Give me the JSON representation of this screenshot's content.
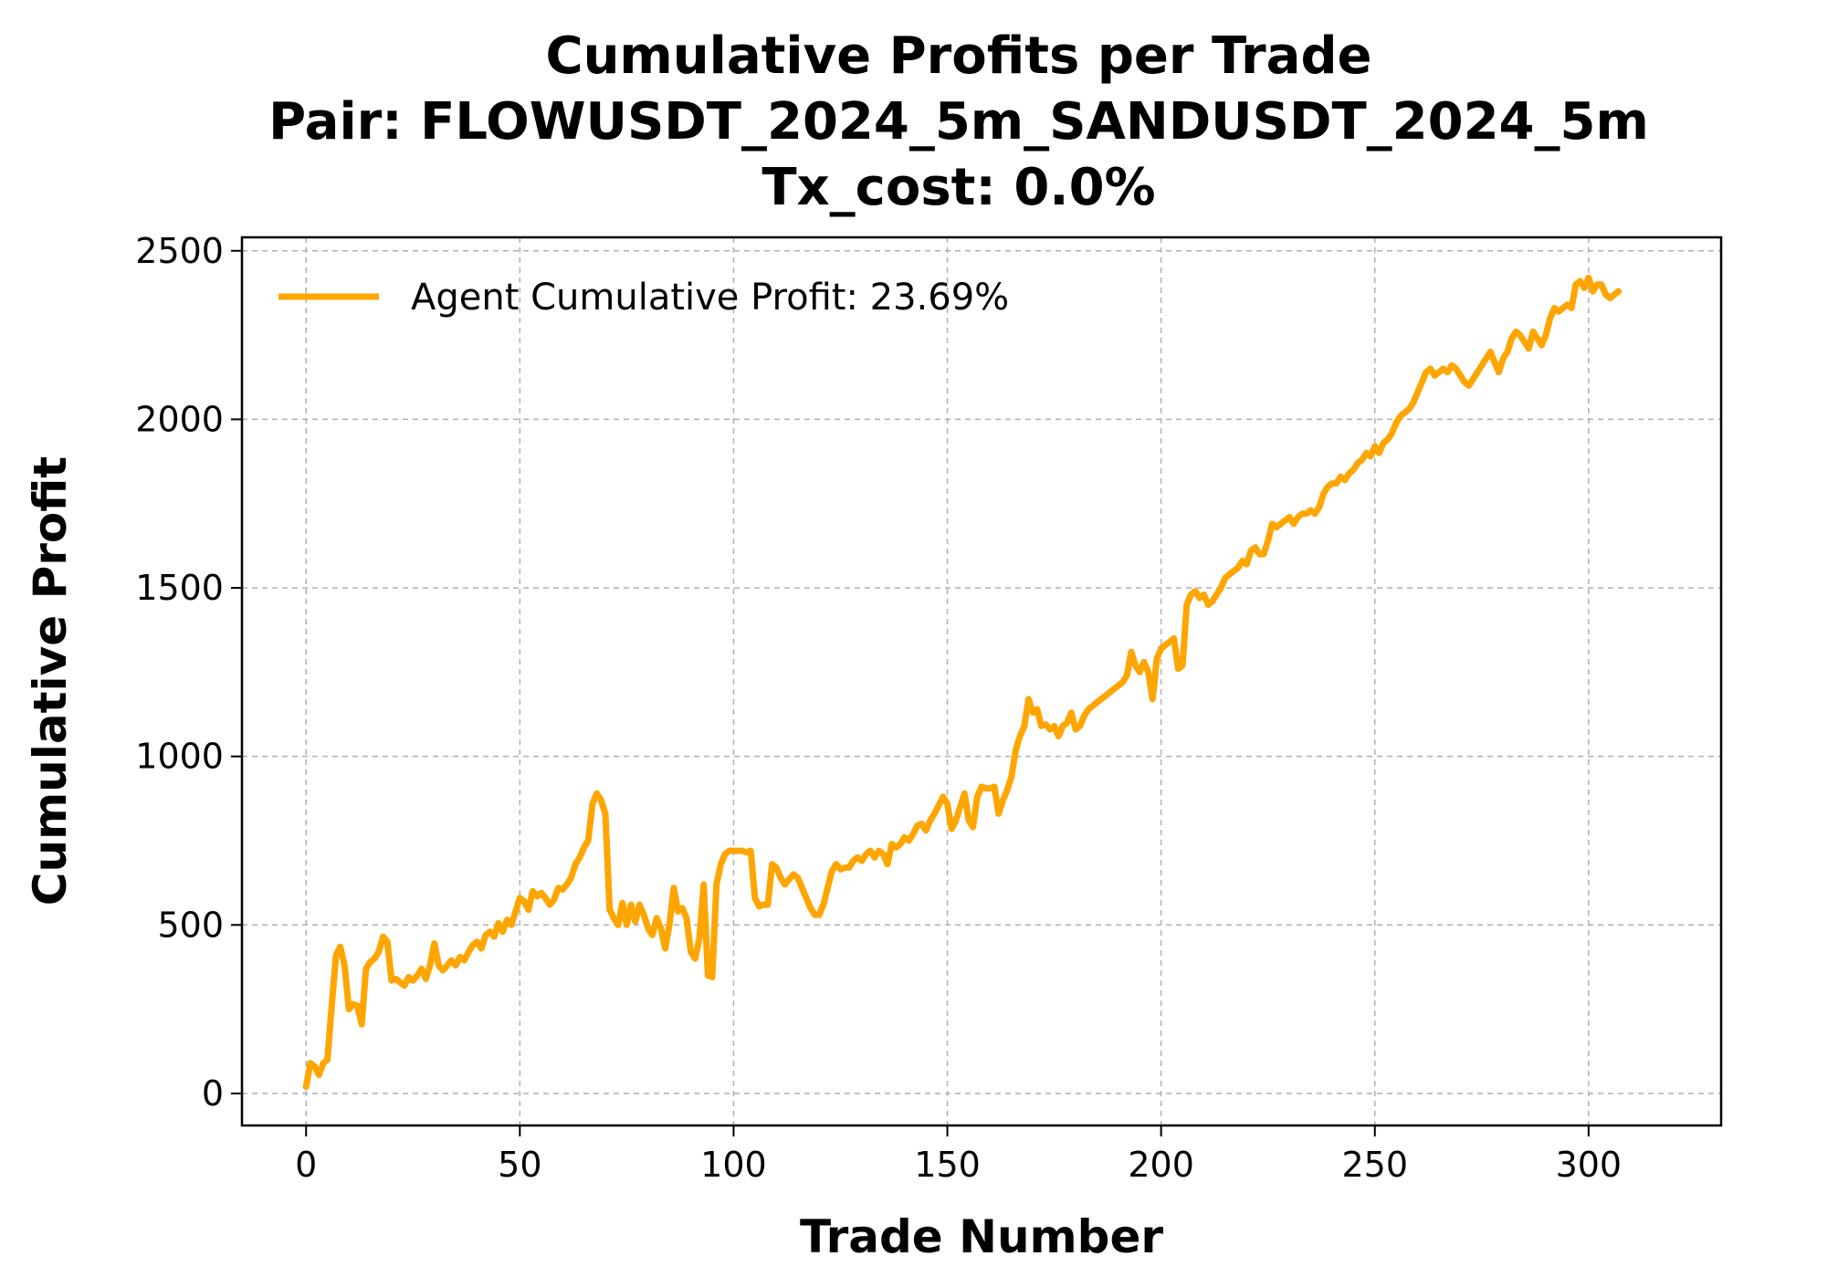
{
  "chart_data": {
    "type": "line",
    "title": [
      "Cumulative Profits per Trade",
      "Pair: FLOWUSDT_2024_5m_SANDUSDT_2024_5m",
      "Tx_cost: 0.0%"
    ],
    "xlabel": "Trade Number",
    "ylabel": "Cumulative Profit",
    "xlim": [
      -15,
      331
    ],
    "ylim": [
      -95,
      2540
    ],
    "x_ticks": [
      0,
      50,
      100,
      150,
      200,
      250,
      300
    ],
    "y_ticks": [
      0,
      500,
      1000,
      1500,
      2000,
      2500
    ],
    "grid": true,
    "legend_position": "top-left",
    "series": [
      {
        "name": "Agent Cumulative Profit: 23.69%",
        "color": "#FFA500",
        "points": [
          [
            0,
            20
          ],
          [
            1,
            90
          ],
          [
            2,
            80
          ],
          [
            3,
            55
          ],
          [
            4,
            90
          ],
          [
            5,
            100
          ],
          [
            6,
            260
          ],
          [
            7,
            410
          ],
          [
            8,
            435
          ],
          [
            9,
            380
          ],
          [
            10,
            250
          ],
          [
            11,
            265
          ],
          [
            12,
            260
          ],
          [
            13,
            205
          ],
          [
            14,
            370
          ],
          [
            15,
            390
          ],
          [
            16,
            400
          ],
          [
            17,
            420
          ],
          [
            18,
            465
          ],
          [
            19,
            450
          ],
          [
            20,
            335
          ],
          [
            21,
            340
          ],
          [
            22,
            330
          ],
          [
            23,
            320
          ],
          [
            24,
            345
          ],
          [
            25,
            335
          ],
          [
            26,
            350
          ],
          [
            27,
            370
          ],
          [
            28,
            340
          ],
          [
            29,
            380
          ],
          [
            30,
            445
          ],
          [
            31,
            380
          ],
          [
            32,
            365
          ],
          [
            33,
            380
          ],
          [
            34,
            395
          ],
          [
            35,
            380
          ],
          [
            36,
            405
          ],
          [
            37,
            395
          ],
          [
            38,
            420
          ],
          [
            39,
            440
          ],
          [
            40,
            450
          ],
          [
            41,
            430
          ],
          [
            42,
            470
          ],
          [
            43,
            480
          ],
          [
            44,
            465
          ],
          [
            45,
            505
          ],
          [
            46,
            480
          ],
          [
            47,
            515
          ],
          [
            48,
            500
          ],
          [
            49,
            540
          ],
          [
            50,
            580
          ],
          [
            51,
            570
          ],
          [
            52,
            545
          ],
          [
            53,
            600
          ],
          [
            54,
            585
          ],
          [
            55,
            595
          ],
          [
            56,
            580
          ],
          [
            57,
            560
          ],
          [
            58,
            575
          ],
          [
            59,
            610
          ],
          [
            60,
            605
          ],
          [
            61,
            620
          ],
          [
            62,
            640
          ],
          [
            63,
            680
          ],
          [
            64,
            700
          ],
          [
            65,
            730
          ],
          [
            66,
            750
          ],
          [
            67,
            860
          ],
          [
            68,
            890
          ],
          [
            69,
            870
          ],
          [
            70,
            830
          ],
          [
            71,
            545
          ],
          [
            72,
            520
          ],
          [
            73,
            500
          ],
          [
            74,
            565
          ],
          [
            75,
            500
          ],
          [
            76,
            560
          ],
          [
            77,
            510
          ],
          [
            78,
            560
          ],
          [
            79,
            530
          ],
          [
            80,
            490
          ],
          [
            81,
            470
          ],
          [
            82,
            520
          ],
          [
            83,
            490
          ],
          [
            84,
            430
          ],
          [
            85,
            500
          ],
          [
            86,
            610
          ],
          [
            87,
            540
          ],
          [
            88,
            550
          ],
          [
            89,
            520
          ],
          [
            90,
            420
          ],
          [
            91,
            400
          ],
          [
            92,
            460
          ],
          [
            93,
            620
          ],
          [
            94,
            350
          ],
          [
            95,
            345
          ],
          [
            96,
            620
          ],
          [
            97,
            680
          ],
          [
            98,
            710
          ],
          [
            99,
            720
          ],
          [
            100,
            720
          ],
          [
            101,
            720
          ],
          [
            102,
            720
          ],
          [
            103,
            715
          ],
          [
            104,
            720
          ],
          [
            105,
            580
          ],
          [
            106,
            555
          ],
          [
            107,
            560
          ],
          [
            108,
            560
          ],
          [
            109,
            680
          ],
          [
            110,
            670
          ],
          [
            111,
            640
          ],
          [
            112,
            620
          ],
          [
            113,
            635
          ],
          [
            114,
            650
          ],
          [
            115,
            640
          ],
          [
            116,
            610
          ],
          [
            117,
            580
          ],
          [
            118,
            550
          ],
          [
            119,
            530
          ],
          [
            120,
            530
          ],
          [
            121,
            560
          ],
          [
            122,
            610
          ],
          [
            123,
            660
          ],
          [
            124,
            680
          ],
          [
            125,
            665
          ],
          [
            126,
            670
          ],
          [
            127,
            670
          ],
          [
            128,
            690
          ],
          [
            129,
            700
          ],
          [
            130,
            690
          ],
          [
            131,
            710
          ],
          [
            132,
            720
          ],
          [
            133,
            700
          ],
          [
            134,
            720
          ],
          [
            135,
            710
          ],
          [
            136,
            680
          ],
          [
            137,
            740
          ],
          [
            138,
            730
          ],
          [
            139,
            740
          ],
          [
            140,
            760
          ],
          [
            141,
            750
          ],
          [
            142,
            770
          ],
          [
            143,
            795
          ],
          [
            144,
            800
          ],
          [
            145,
            780
          ],
          [
            146,
            810
          ],
          [
            147,
            830
          ],
          [
            148,
            855
          ],
          [
            149,
            880
          ],
          [
            150,
            860
          ],
          [
            151,
            785
          ],
          [
            152,
            810
          ],
          [
            153,
            850
          ],
          [
            154,
            890
          ],
          [
            155,
            810
          ],
          [
            156,
            790
          ],
          [
            157,
            880
          ],
          [
            158,
            910
          ],
          [
            159,
            905
          ],
          [
            160,
            905
          ],
          [
            161,
            910
          ],
          [
            162,
            830
          ],
          [
            163,
            870
          ],
          [
            164,
            900
          ],
          [
            165,
            940
          ],
          [
            166,
            1020
          ],
          [
            167,
            1060
          ],
          [
            168,
            1090
          ],
          [
            169,
            1170
          ],
          [
            170,
            1130
          ],
          [
            171,
            1140
          ],
          [
            172,
            1090
          ],
          [
            173,
            1095
          ],
          [
            174,
            1080
          ],
          [
            175,
            1090
          ],
          [
            176,
            1060
          ],
          [
            177,
            1090
          ],
          [
            178,
            1100
          ],
          [
            179,
            1130
          ],
          [
            180,
            1080
          ],
          [
            181,
            1090
          ],
          [
            182,
            1120
          ],
          [
            183,
            1140
          ],
          [
            184,
            1150
          ],
          [
            185,
            1160
          ],
          [
            186,
            1170
          ],
          [
            187,
            1180
          ],
          [
            188,
            1190
          ],
          [
            189,
            1200
          ],
          [
            190,
            1210
          ],
          [
            191,
            1220
          ],
          [
            192,
            1240
          ],
          [
            193,
            1310
          ],
          [
            194,
            1270
          ],
          [
            195,
            1250
          ],
          [
            196,
            1280
          ],
          [
            197,
            1250
          ],
          [
            198,
            1170
          ],
          [
            199,
            1290
          ],
          [
            200,
            1320
          ],
          [
            201,
            1330
          ],
          [
            202,
            1340
          ],
          [
            203,
            1350
          ],
          [
            204,
            1260
          ],
          [
            205,
            1270
          ],
          [
            206,
            1450
          ],
          [
            207,
            1480
          ],
          [
            208,
            1490
          ],
          [
            209,
            1470
          ],
          [
            210,
            1480
          ],
          [
            211,
            1450
          ],
          [
            212,
            1460
          ],
          [
            213,
            1480
          ],
          [
            214,
            1500
          ],
          [
            215,
            1530
          ],
          [
            216,
            1540
          ],
          [
            217,
            1550
          ],
          [
            218,
            1560
          ],
          [
            219,
            1580
          ],
          [
            220,
            1570
          ],
          [
            221,
            1610
          ],
          [
            222,
            1620
          ],
          [
            223,
            1600
          ],
          [
            224,
            1600
          ],
          [
            225,
            1640
          ],
          [
            226,
            1690
          ],
          [
            227,
            1680
          ],
          [
            228,
            1690
          ],
          [
            229,
            1700
          ],
          [
            230,
            1710
          ],
          [
            231,
            1690
          ],
          [
            232,
            1710
          ],
          [
            233,
            1720
          ],
          [
            234,
            1720
          ],
          [
            235,
            1730
          ],
          [
            236,
            1720
          ],
          [
            237,
            1740
          ],
          [
            238,
            1780
          ],
          [
            239,
            1800
          ],
          [
            240,
            1810
          ],
          [
            241,
            1810
          ],
          [
            242,
            1830
          ],
          [
            243,
            1820
          ],
          [
            244,
            1840
          ],
          [
            245,
            1850
          ],
          [
            246,
            1870
          ],
          [
            247,
            1880
          ],
          [
            248,
            1900
          ],
          [
            249,
            1890
          ],
          [
            250,
            1920
          ],
          [
            251,
            1900
          ],
          [
            252,
            1930
          ],
          [
            253,
            1940
          ],
          [
            254,
            1960
          ],
          [
            255,
            1990
          ],
          [
            256,
            2010
          ],
          [
            257,
            2020
          ],
          [
            258,
            2030
          ],
          [
            259,
            2050
          ],
          [
            260,
            2080
          ],
          [
            261,
            2110
          ],
          [
            262,
            2140
          ],
          [
            263,
            2150
          ],
          [
            264,
            2130
          ],
          [
            265,
            2140
          ],
          [
            266,
            2150
          ],
          [
            267,
            2140
          ],
          [
            268,
            2160
          ],
          [
            269,
            2150
          ],
          [
            270,
            2130
          ],
          [
            271,
            2110
          ],
          [
            272,
            2100
          ],
          [
            273,
            2120
          ],
          [
            274,
            2140
          ],
          [
            275,
            2160
          ],
          [
            276,
            2180
          ],
          [
            277,
            2200
          ],
          [
            278,
            2170
          ],
          [
            279,
            2140
          ],
          [
            280,
            2180
          ],
          [
            281,
            2200
          ],
          [
            282,
            2240
          ],
          [
            283,
            2260
          ],
          [
            284,
            2250
          ],
          [
            285,
            2230
          ],
          [
            286,
            2210
          ],
          [
            287,
            2260
          ],
          [
            288,
            2240
          ],
          [
            289,
            2220
          ],
          [
            290,
            2250
          ],
          [
            291,
            2300
          ],
          [
            292,
            2330
          ],
          [
            293,
            2320
          ],
          [
            294,
            2330
          ],
          [
            295,
            2340
          ],
          [
            296,
            2330
          ],
          [
            297,
            2400
          ],
          [
            298,
            2410
          ],
          [
            299,
            2390
          ],
          [
            300,
            2420
          ],
          [
            301,
            2380
          ],
          [
            302,
            2400
          ],
          [
            303,
            2400
          ],
          [
            304,
            2370
          ],
          [
            305,
            2360
          ],
          [
            306,
            2370
          ],
          [
            307,
            2380
          ]
        ]
      }
    ]
  }
}
